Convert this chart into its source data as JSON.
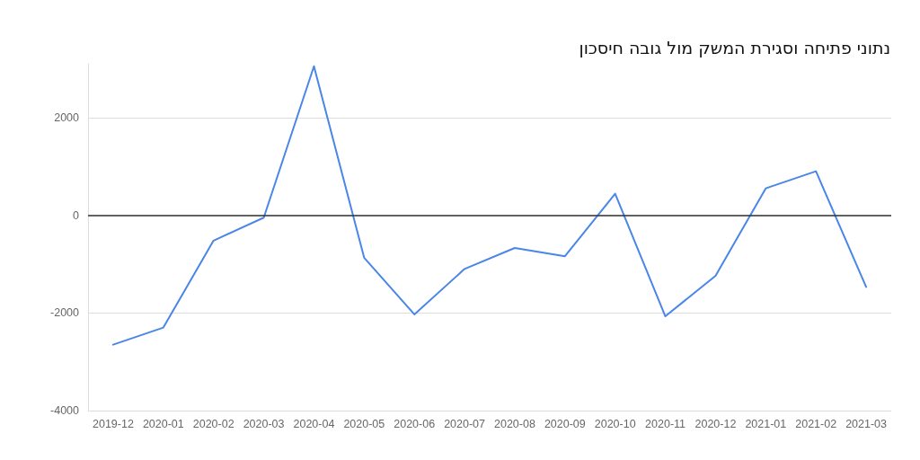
{
  "chart_data": {
    "type": "line",
    "title": "נתוני פתיחה וסגירת המשק מול גובה חיסכון",
    "categories": [
      "2019-12",
      "2020-01",
      "2020-02",
      "2020-03",
      "2020-04",
      "2020-05",
      "2020-06",
      "2020-07",
      "2020-08",
      "2020-09",
      "2020-10",
      "2020-11",
      "2020-12",
      "2021-01",
      "2021-02",
      "2021-03"
    ],
    "series": [
      {
        "color": "#4a86e8",
        "values": [
          -2650,
          -2300,
          -520,
          -50,
          3050,
          -870,
          -2030,
          -1100,
          -670,
          -840,
          440,
          -2070,
          -1240,
          550,
          900,
          -1470
        ]
      }
    ],
    "ylim": [
      -4000,
      3100
    ],
    "yticks": [
      -4000,
      -2000,
      0,
      2000
    ],
    "ref_lines": [
      {
        "axis": "y",
        "value": 0,
        "color": "#333333"
      }
    ],
    "grid": "y",
    "marker": "none",
    "line_style": "solid"
  }
}
